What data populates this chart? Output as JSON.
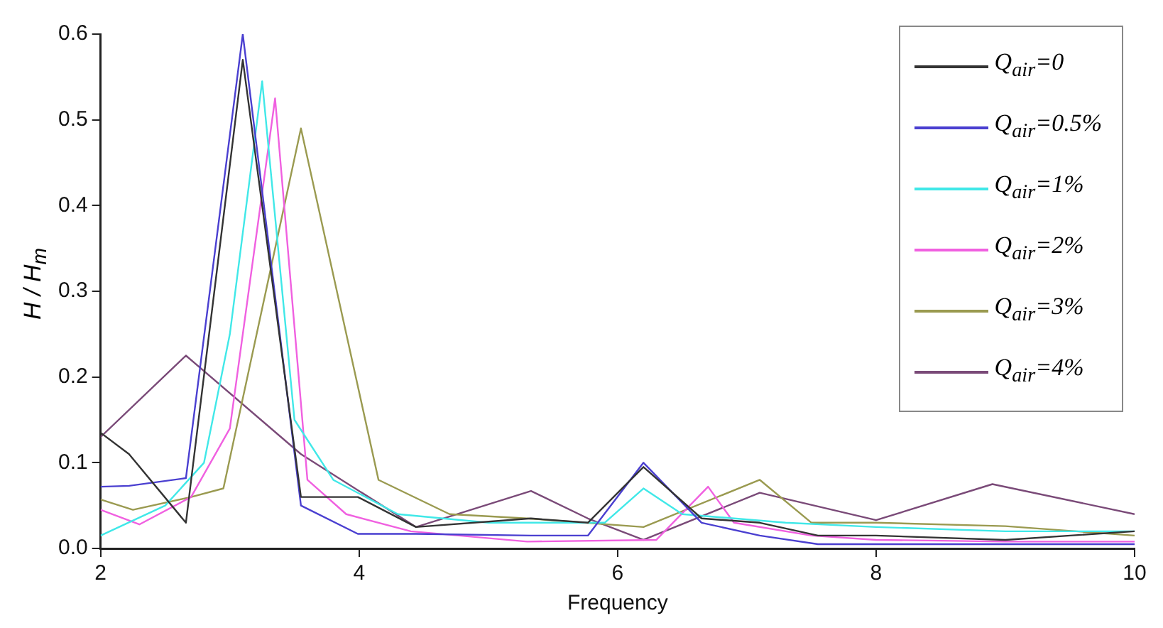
{
  "chart_data": {
    "type": "line",
    "xlabel": "Frequency",
    "ylabel": "H / H$_{m}$",
    "xlim": [
      2,
      10
    ],
    "ylim": [
      0,
      0.6
    ],
    "xticks": [
      2,
      4,
      6,
      8,
      10
    ],
    "yticks": [
      {
        "value": 0,
        "label": "0.0"
      },
      {
        "value": 0.1,
        "label": "0.1"
      },
      {
        "value": 0.2,
        "label": "0.2"
      },
      {
        "value": 0.3,
        "label": "0.3"
      },
      {
        "value": 0.4,
        "label": "0.4"
      },
      {
        "value": 0.5,
        "label": "0.5"
      },
      {
        "value": 0.6,
        "label": "0.6"
      }
    ],
    "grid": false,
    "legend": "top right",
    "marker": "none",
    "line_style": "solid",
    "series": [
      {
        "name": "Q$_{air}$=0",
        "color": "#333333",
        "x": [
          2,
          2.22,
          2.66,
          3.1,
          3.55,
          3.99,
          4.44,
          5.33,
          5.77,
          6.2,
          6.65,
          7.1,
          7.55,
          8,
          9,
          10
        ],
        "values": [
          0.135,
          0.11,
          0.03,
          0.57,
          0.06,
          0.06,
          0.025,
          0.035,
          0.03,
          0.095,
          0.035,
          0.03,
          0.015,
          0.015,
          0.01,
          0.02
        ]
      },
      {
        "name": "Q$_{air}$=0.5%",
        "color": "#4a3fd0",
        "x": [
          2,
          2.22,
          2.66,
          3.1,
          3.55,
          3.99,
          4.44,
          5.33,
          5.77,
          6.2,
          6.65,
          7.1,
          7.55,
          8,
          9,
          10
        ],
        "values": [
          0.072,
          0.073,
          0.082,
          0.6,
          0.05,
          0.017,
          0.017,
          0.015,
          0.015,
          0.1,
          0.03,
          0.015,
          0.005,
          0.005,
          0.005,
          0.005
        ]
      },
      {
        "name": "Q$_{air}$=1%",
        "color": "#40e8e8",
        "x": [
          2,
          2.5,
          2.8,
          3.0,
          3.25,
          3.5,
          3.8,
          4.3,
          5.0,
          5.9,
          6.2,
          6.5,
          7.3,
          8,
          9,
          10
        ],
        "values": [
          0.015,
          0.05,
          0.1,
          0.25,
          0.545,
          0.15,
          0.08,
          0.04,
          0.03,
          0.03,
          0.07,
          0.04,
          0.03,
          0.025,
          0.02,
          0.02
        ]
      },
      {
        "name": "Q$_{air}$=2%",
        "color": "#f060e0",
        "x": [
          2,
          2.3,
          2.7,
          3.0,
          3.35,
          3.6,
          3.9,
          4.4,
          5.3,
          6.3,
          6.7,
          6.9,
          7.5,
          8,
          9,
          10
        ],
        "values": [
          0.045,
          0.028,
          0.06,
          0.14,
          0.525,
          0.08,
          0.04,
          0.02,
          0.008,
          0.01,
          0.072,
          0.03,
          0.015,
          0.01,
          0.008,
          0.008
        ]
      },
      {
        "name": "Q$_{air}$=3%",
        "color": "#9a9a50",
        "x": [
          2,
          2.25,
          2.7,
          2.95,
          3.55,
          4.15,
          4.7,
          5.3,
          6.2,
          7.1,
          7.5,
          8,
          9,
          10
        ],
        "values": [
          0.057,
          0.045,
          0.06,
          0.07,
          0.49,
          0.08,
          0.04,
          0.035,
          0.025,
          0.08,
          0.03,
          0.03,
          0.026,
          0.015
        ]
      },
      {
        "name": "Q$_{air}$=4%",
        "color": "#7a4a78",
        "x": [
          2,
          2.66,
          3.55,
          4.44,
          5.33,
          5.77,
          6.2,
          7.1,
          8,
          8.9,
          10
        ],
        "values": [
          0.13,
          0.225,
          0.11,
          0.025,
          0.067,
          0.035,
          0.01,
          0.065,
          0.033,
          0.075,
          0.04
        ]
      }
    ]
  }
}
